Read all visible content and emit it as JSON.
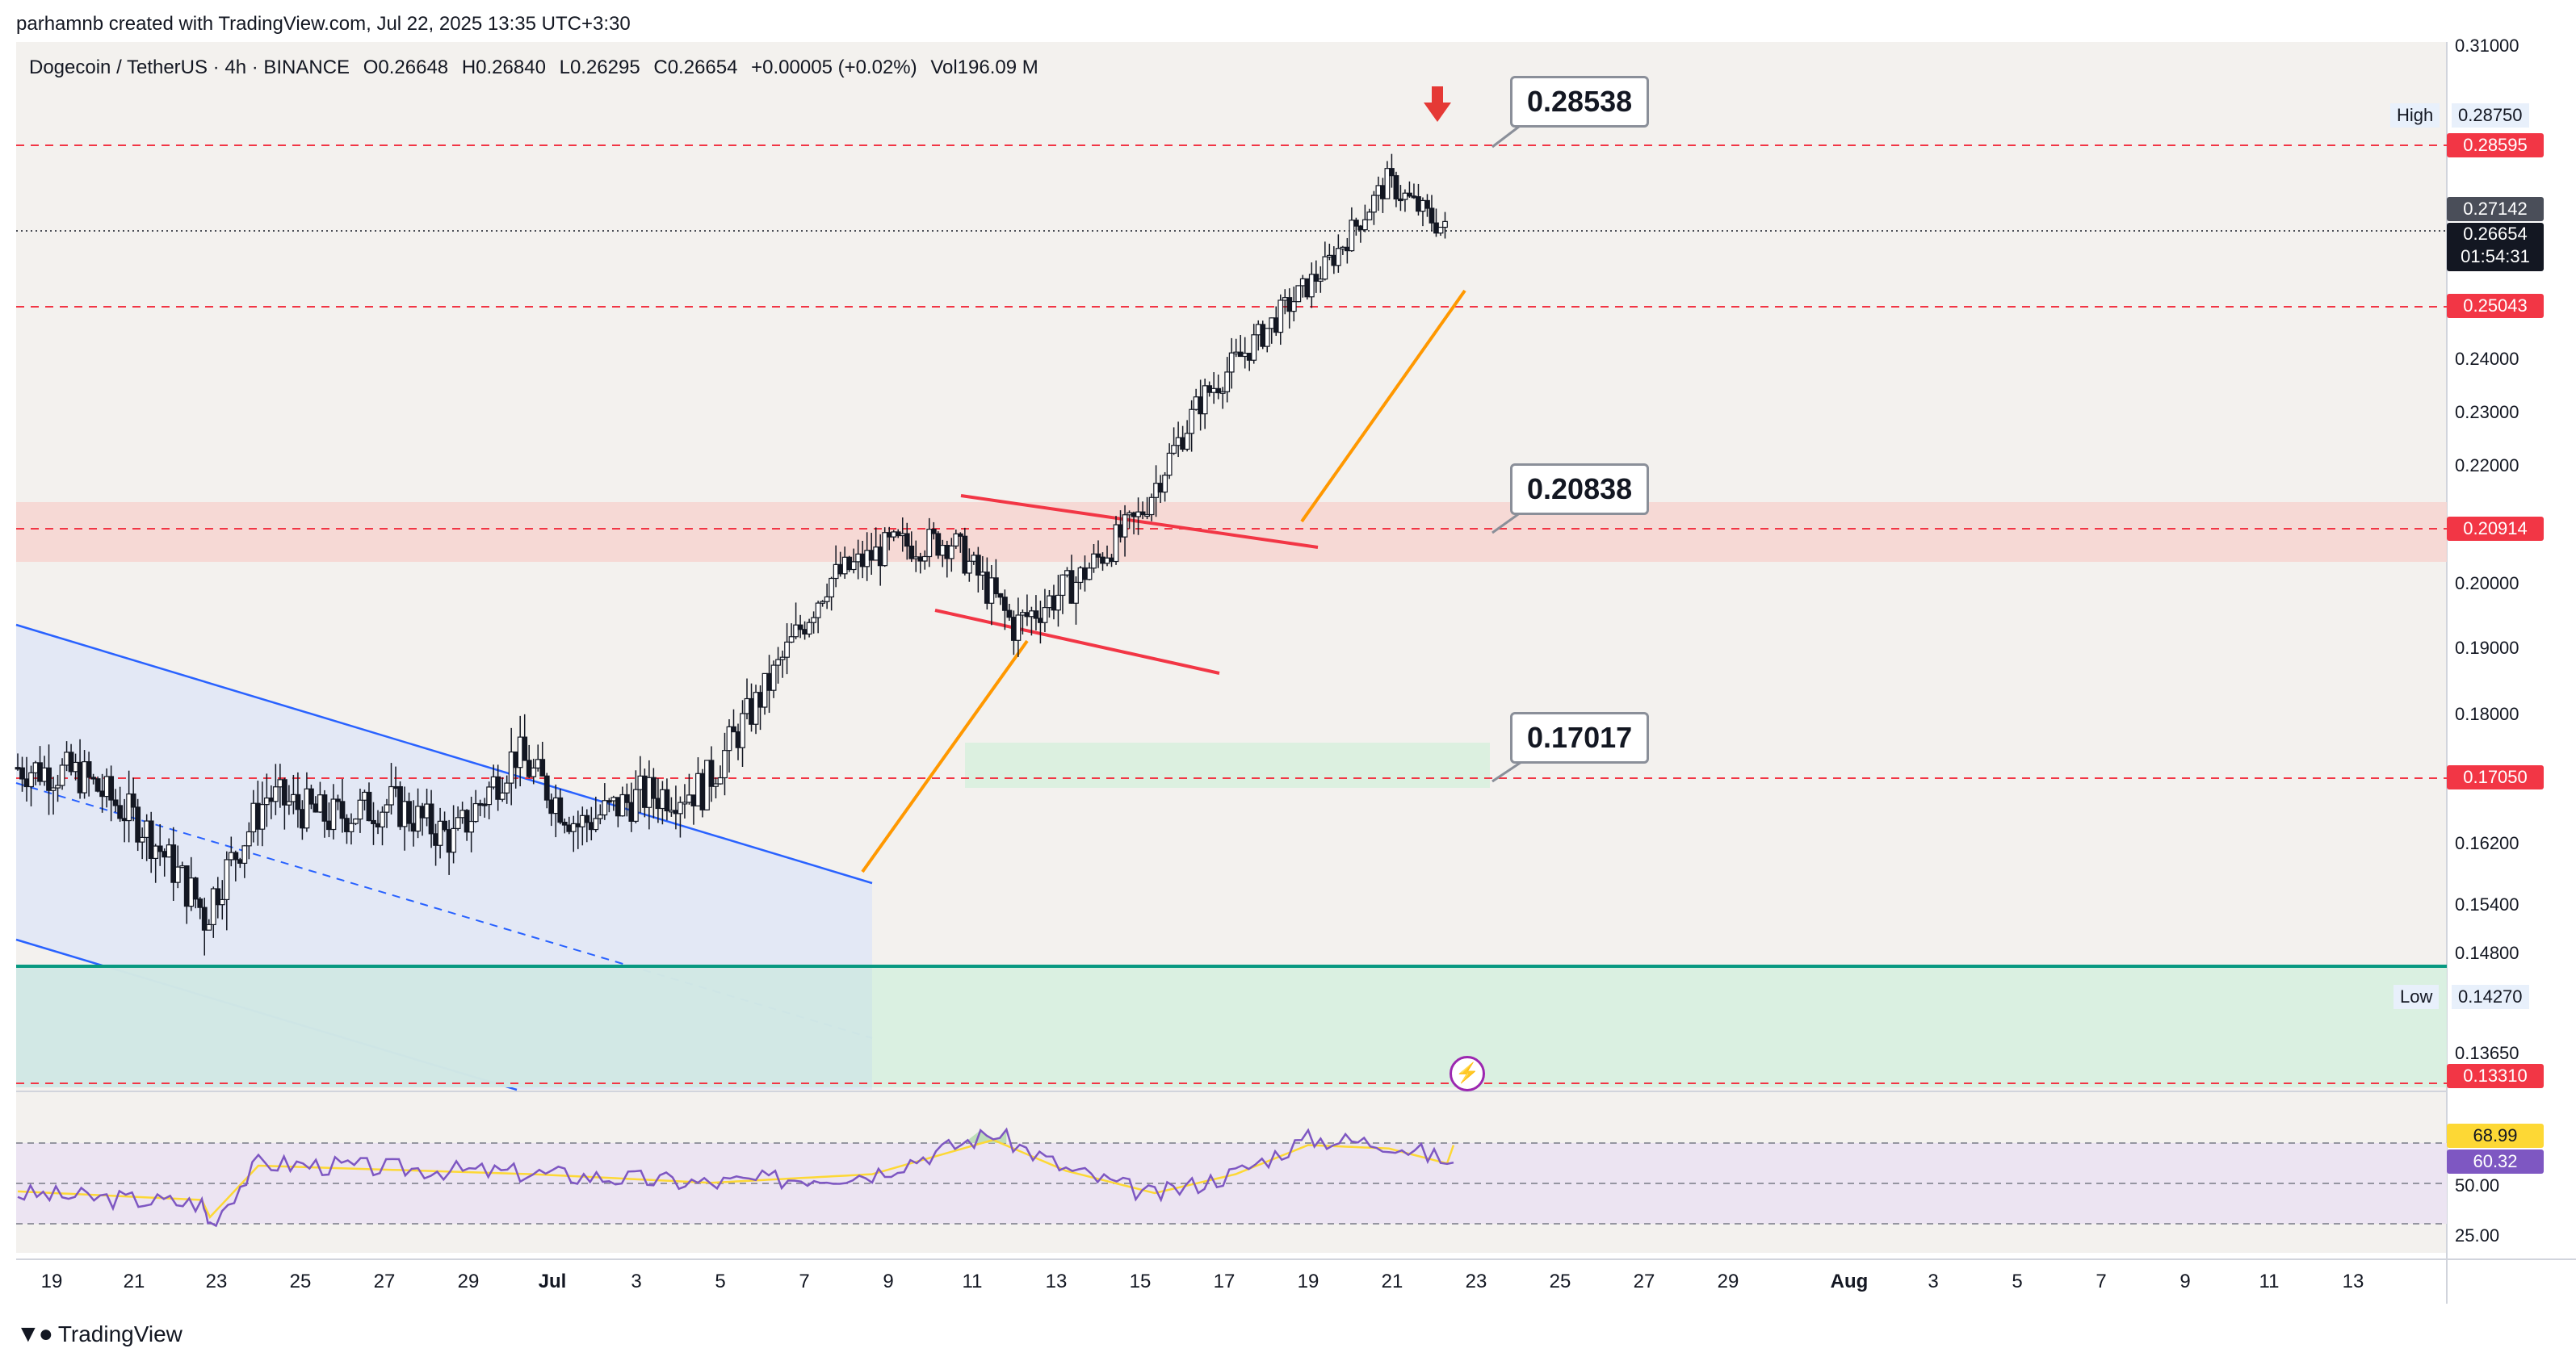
{
  "credit": "parhamnb created with TradingView.com, Jul 22, 2025 13:35 UTC+3:30",
  "header": {
    "symbol": "Dogecoin / TetherUS · 4h · BINANCE",
    "open": "O0.26648",
    "high": "H0.26840",
    "low": "L0.26295",
    "close": "C0.26654",
    "change": "+0.00005 (+0.02%)",
    "volume": "Vol196.09 M"
  },
  "callouts": [
    "0.28538",
    "0.20838",
    "0.17017"
  ],
  "price_axis": {
    "ticks": [
      "0.31000",
      "0.24000",
      "0.23000",
      "0.22000",
      "0.20000",
      "0.19000",
      "0.18000",
      "0.16200",
      "0.15400",
      "0.14800",
      "0.13650"
    ],
    "high_label": "High",
    "high_value": "0.28750",
    "low_label": "Low",
    "low_value": "0.14270",
    "tags": {
      "p28595": "0.28595",
      "p27142": "0.27142",
      "p26654": "0.26654",
      "countdown": "01:54:31",
      "p25043": "0.25043",
      "p20914": "0.20914",
      "p17050": "0.17050",
      "p13310": "0.13310"
    }
  },
  "rsi_axis": {
    "v68": "68.99",
    "v60": "60.32",
    "v50": "50.00",
    "v25": "25.00"
  },
  "time_axis": [
    "19",
    "21",
    "23",
    "25",
    "27",
    "29",
    "Jul",
    "3",
    "5",
    "7",
    "9",
    "11",
    "13",
    "15",
    "17",
    "19",
    "21",
    "23",
    "25",
    "27",
    "29",
    "Aug",
    "3",
    "5",
    "7",
    "9",
    "11",
    "13"
  ],
  "brand": "TradingView",
  "colors": {
    "up": "#ffffff",
    "down": "#131722",
    "red_level": "#f23645",
    "channel_blue": "#2962ff",
    "orange": "#ff9800",
    "rsi": "#7e57c2",
    "rsi_ma": "#fdd835",
    "teal": "#089981"
  },
  "chart_data": {
    "type": "candlestick",
    "title": "Dogecoin / TetherUS · 4h · BINANCE",
    "x_range": [
      "Jun 18",
      "Aug 14"
    ],
    "y_range": [
      0.1331,
      0.31
    ],
    "levels": [
      0.28595,
      0.27142,
      0.25043,
      0.20914,
      0.1705,
      0.1331
    ],
    "annotated_prices": [
      0.28538,
      0.20838,
      0.17017
    ],
    "high": 0.2875,
    "low": 0.1427,
    "last": 0.26654,
    "series": [
      {
        "name": "price-close",
        "x": [
          "Jun 18",
          "Jun 20",
          "Jun 22",
          "Jun 23",
          "Jun 25",
          "Jun 27",
          "Jun 29",
          "Jul 1",
          "Jul 2",
          "Jul 4",
          "Jul 6",
          "Jul 8",
          "Jul 10",
          "Jul 11",
          "Jul 12",
          "Jul 14",
          "Jul 15",
          "Jul 16",
          "Jul 17",
          "Jul 18",
          "Jul 19",
          "Jul 20",
          "Jul 21",
          "Jul 22"
        ],
        "values": [
          0.172,
          0.171,
          0.164,
          0.152,
          0.168,
          0.165,
          0.167,
          0.162,
          0.174,
          0.164,
          0.168,
          0.169,
          0.183,
          0.2,
          0.206,
          0.207,
          0.193,
          0.2,
          0.211,
          0.232,
          0.245,
          0.259,
          0.278,
          0.2665
        ]
      },
      {
        "name": "RSI",
        "x": [
          "Jun 18",
          "Jun 22",
          "Jun 23",
          "Jun 25",
          "Jul 1",
          "Jul 4",
          "Jul 8",
          "Jul 11",
          "Jul 13",
          "Jul 15",
          "Jul 17",
          "Jul 19",
          "Jul 21",
          "Jul 22"
        ],
        "values": [
          45,
          40,
          30,
          60,
          55,
          50,
          55,
          75,
          57,
          44,
          55,
          72,
          70,
          60.32
        ]
      }
    ]
  }
}
